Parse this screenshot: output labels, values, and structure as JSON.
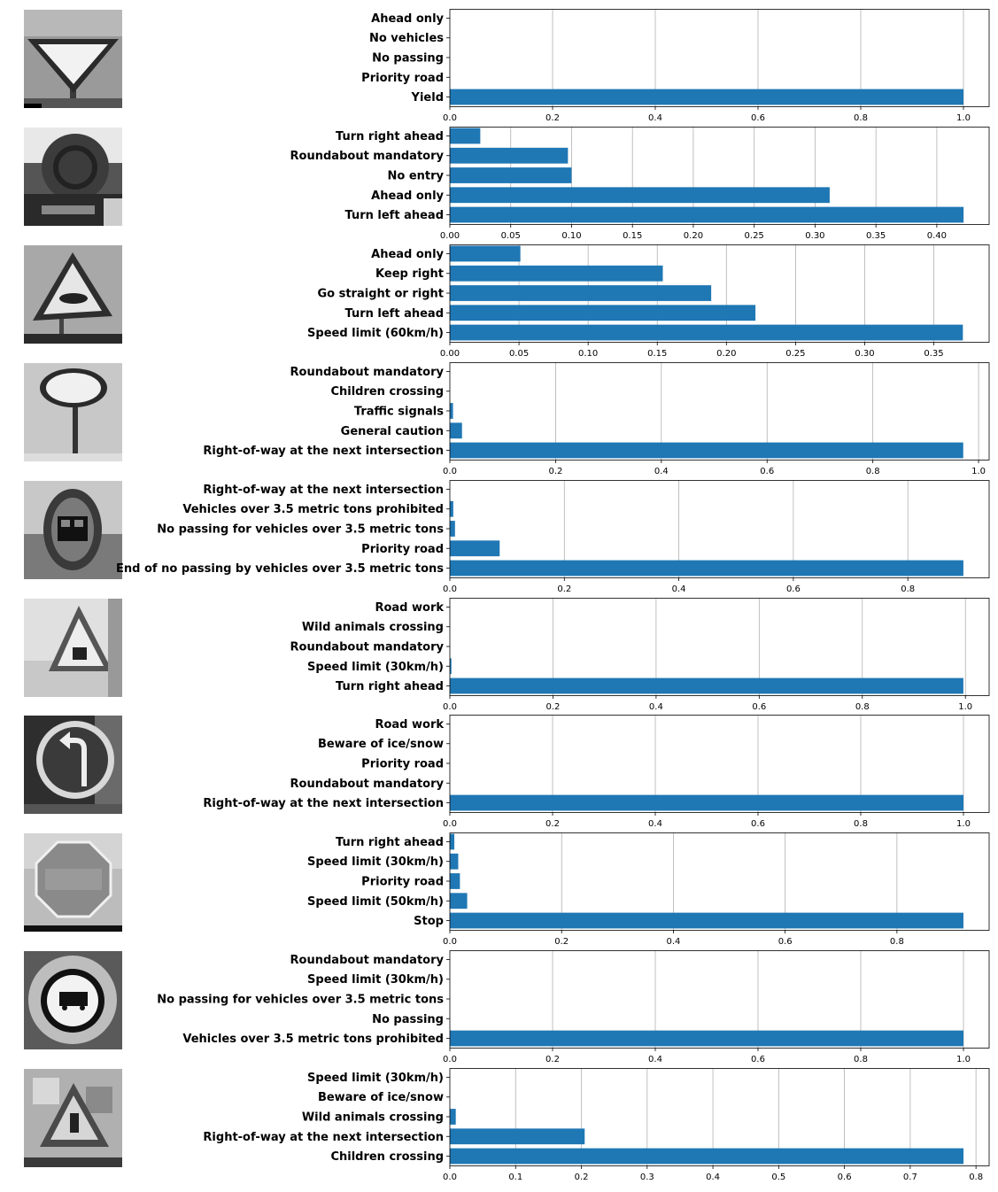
{
  "chart_data": [
    {
      "type": "bar",
      "orientation": "horizontal",
      "image": "yield-sign",
      "categories": [
        "Ahead only",
        "No vehicles",
        "No passing",
        "Priority road",
        "Yield"
      ],
      "values": [
        0.0,
        0.0,
        0.0,
        0.0,
        1.0
      ],
      "xlim": [
        0,
        1.05
      ],
      "xticks": [
        0.0,
        0.2,
        0.4,
        0.6,
        0.8,
        1.0
      ],
      "xtick_labels": [
        "0.0",
        "0.2",
        "0.4",
        "0.6",
        "0.8",
        "1.0"
      ],
      "grid": "x",
      "bar_color": "#1f77b4"
    },
    {
      "type": "bar",
      "orientation": "horizontal",
      "image": "roundabout-sign",
      "categories": [
        "Turn right ahead",
        "Roundabout mandatory",
        "No entry",
        "Ahead only",
        "Turn left ahead"
      ],
      "values": [
        0.025,
        0.097,
        0.1,
        0.312,
        0.422
      ],
      "xlim": [
        0,
        0.443
      ],
      "xticks": [
        0.0,
        0.05,
        0.1,
        0.15,
        0.2,
        0.25,
        0.3,
        0.35,
        0.4
      ],
      "xtick_labels": [
        "0.00",
        "0.05",
        "0.10",
        "0.15",
        "0.20",
        "0.25",
        "0.30",
        "0.35",
        "0.40"
      ],
      "grid": "x",
      "bar_color": "#1f77b4"
    },
    {
      "type": "bar",
      "orientation": "horizontal",
      "image": "bumpy-road-sign",
      "categories": [
        "Ahead only",
        "Keep right",
        "Go straight or right",
        "Turn left ahead",
        "Speed limit (60km/h)"
      ],
      "values": [
        0.051,
        0.154,
        0.189,
        0.221,
        0.371
      ],
      "xlim": [
        0,
        0.39
      ],
      "xticks": [
        0.0,
        0.05,
        0.1,
        0.15,
        0.2,
        0.25,
        0.3,
        0.35
      ],
      "xtick_labels": [
        "0.00",
        "0.05",
        "0.10",
        "0.15",
        "0.20",
        "0.25",
        "0.30",
        "0.35"
      ],
      "grid": "x",
      "bar_color": "#1f77b4"
    },
    {
      "type": "bar",
      "orientation": "horizontal",
      "image": "speed-limit-30-sign",
      "categories": [
        "Roundabout mandatory",
        "Children crossing",
        "Traffic signals",
        "General caution",
        "Right-of-way at the next intersection"
      ],
      "values": [
        0.0,
        0.0,
        0.006,
        0.023,
        0.971
      ],
      "xlim": [
        0,
        1.02
      ],
      "xticks": [
        0.0,
        0.2,
        0.4,
        0.6,
        0.8,
        1.0
      ],
      "xtick_labels": [
        "0.0",
        "0.2",
        "0.4",
        "0.6",
        "0.8",
        "1.0"
      ],
      "grid": "x",
      "bar_color": "#1f77b4"
    },
    {
      "type": "bar",
      "orientation": "horizontal",
      "image": "truck-restriction-sign",
      "categories": [
        "Right-of-way at the next intersection",
        "Vehicles over 3.5 metric tons prohibited",
        "No passing for vehicles over 3.5 metric tons",
        "Priority road",
        "End of no passing by vehicles over 3.5 metric tons"
      ],
      "values": [
        0.0,
        0.006,
        0.009,
        0.087,
        0.897
      ],
      "xlim": [
        0,
        0.942
      ],
      "xticks": [
        0.0,
        0.2,
        0.4,
        0.6,
        0.8
      ],
      "xtick_labels": [
        "0.0",
        "0.2",
        "0.4",
        "0.6",
        "0.8"
      ],
      "grid": "x",
      "bar_color": "#1f77b4"
    },
    {
      "type": "bar",
      "orientation": "horizontal",
      "image": "road-work-sign",
      "categories": [
        "Road work",
        "Wild animals crossing",
        "Roundabout mandatory",
        "Speed limit (30km/h)",
        "Turn right ahead"
      ],
      "values": [
        0.0,
        0.0,
        0.0,
        0.003,
        0.996
      ],
      "xlim": [
        0,
        1.046
      ],
      "xticks": [
        0.0,
        0.2,
        0.4,
        0.6,
        0.8,
        1.0
      ],
      "xtick_labels": [
        "0.0",
        "0.2",
        "0.4",
        "0.6",
        "0.8",
        "1.0"
      ],
      "grid": "x",
      "bar_color": "#1f77b4"
    },
    {
      "type": "bar",
      "orientation": "horizontal",
      "image": "turn-left-sign",
      "categories": [
        "Road work",
        "Beware of ice/snow",
        "Priority road",
        "Roundabout mandatory",
        "Right-of-way at the next intersection"
      ],
      "values": [
        0.0,
        0.0,
        0.0,
        0.0,
        1.0
      ],
      "xlim": [
        0,
        1.05
      ],
      "xticks": [
        0.0,
        0.2,
        0.4,
        0.6,
        0.8,
        1.0
      ],
      "xtick_labels": [
        "0.0",
        "0.2",
        "0.4",
        "0.6",
        "0.8",
        "1.0"
      ],
      "grid": "x",
      "bar_color": "#1f77b4"
    },
    {
      "type": "bar",
      "orientation": "horizontal",
      "image": "stop-sign",
      "categories": [
        "Turn right ahead",
        "Speed limit (30km/h)",
        "Priority road",
        "Speed limit (50km/h)",
        "Stop"
      ],
      "values": [
        0.008,
        0.015,
        0.018,
        0.031,
        0.919
      ],
      "xlim": [
        0,
        0.965
      ],
      "xticks": [
        0.0,
        0.2,
        0.4,
        0.6,
        0.8
      ],
      "xtick_labels": [
        "0.0",
        "0.2",
        "0.4",
        "0.6",
        "0.8"
      ],
      "grid": "x",
      "bar_color": "#1f77b4"
    },
    {
      "type": "bar",
      "orientation": "horizontal",
      "image": "no-trucks-sign",
      "categories": [
        "Roundabout mandatory",
        "Speed limit (30km/h)",
        "No passing for vehicles over 3.5 metric tons",
        "No passing",
        "Vehicles over 3.5 metric tons prohibited"
      ],
      "values": [
        0.0,
        0.0,
        0.0,
        0.0,
        1.0
      ],
      "xlim": [
        0,
        1.05
      ],
      "xticks": [
        0.0,
        0.2,
        0.4,
        0.6,
        0.8,
        1.0
      ],
      "xtick_labels": [
        "0.0",
        "0.2",
        "0.4",
        "0.6",
        "0.8",
        "1.0"
      ],
      "grid": "x",
      "bar_color": "#1f77b4"
    },
    {
      "type": "bar",
      "orientation": "horizontal",
      "image": "children-crossing-sign",
      "categories": [
        "Speed limit (30km/h)",
        "Beware of ice/snow",
        "Wild animals crossing",
        "Right-of-way at the next intersection",
        "Children crossing"
      ],
      "values": [
        0.0,
        0.0,
        0.009,
        0.205,
        0.781
      ],
      "xlim": [
        0,
        0.82
      ],
      "xticks": [
        0.0,
        0.1,
        0.2,
        0.3,
        0.4,
        0.5,
        0.6,
        0.7,
        0.8
      ],
      "xtick_labels": [
        "0.0",
        "0.1",
        "0.2",
        "0.3",
        "0.4",
        "0.5",
        "0.6",
        "0.7",
        "0.8"
      ],
      "grid": "x",
      "bar_color": "#1f77b4"
    }
  ]
}
